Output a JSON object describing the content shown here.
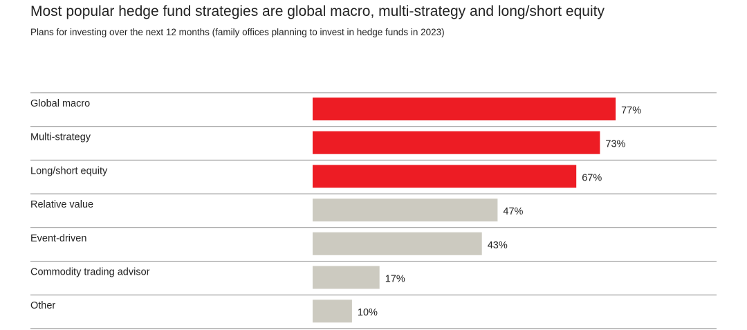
{
  "chart_data": {
    "type": "bar",
    "orientation": "horizontal",
    "title": "Most popular hedge fund strategies are global macro, multi-strategy and long/short equity",
    "subtitle": "Plans for investing over the next 12 months (family offices planning to invest in hedge funds in 2023)",
    "categories": [
      "Global macro",
      "Multi-strategy",
      "Long/short equity",
      "Relative value",
      "Event-driven",
      "Commodity trading advisor",
      "Other"
    ],
    "values": [
      77,
      73,
      67,
      47,
      43,
      17,
      10
    ],
    "value_labels": [
      "77%",
      "73%",
      "67%",
      "47%",
      "43%",
      "17%",
      "10%"
    ],
    "unit": "%",
    "xlim": [
      0,
      100
    ],
    "bar_colors": [
      "#ed1c24",
      "#ed1c24",
      "#ed1c24",
      "#cccac0",
      "#cccac0",
      "#cccac0",
      "#cccac0"
    ],
    "grid": false,
    "legend": "none"
  }
}
